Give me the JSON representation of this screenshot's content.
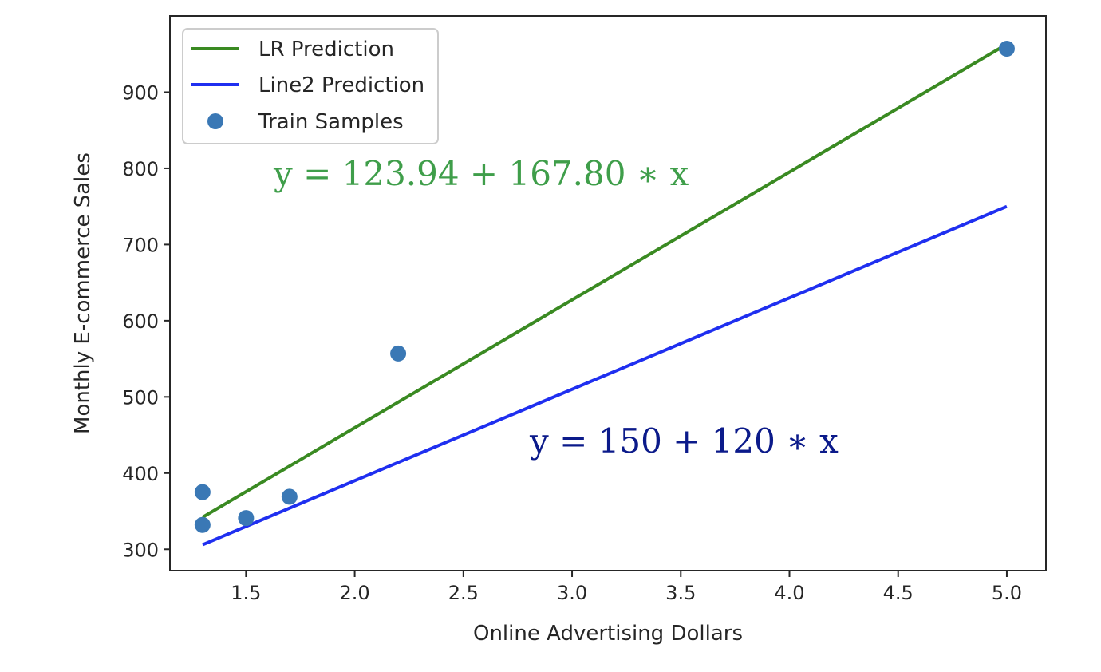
{
  "chart_data": {
    "type": "scatter",
    "xlabel": "Online Advertising Dollars",
    "ylabel": "Monthly E-commerce Sales",
    "xlim": [
      1.15,
      5.18
    ],
    "ylim": [
      272,
      1000
    ],
    "x_ticks": [
      1.5,
      2.0,
      2.5,
      3.0,
      3.5,
      4.0,
      4.5,
      5.0
    ],
    "x_tick_labels": [
      "1.5",
      "2.0",
      "2.5",
      "3.0",
      "3.5",
      "4.0",
      "4.5",
      "5.0"
    ],
    "y_ticks": [
      300,
      400,
      500,
      600,
      700,
      800,
      900
    ],
    "y_tick_labels": [
      "300",
      "400",
      "500",
      "600",
      "700",
      "800",
      "900"
    ],
    "grid": false,
    "legend_placement": "upper-left",
    "series": [
      {
        "name": "LR Prediction",
        "kind": "line",
        "color": "#3a8a22",
        "intercept": 123.94,
        "slope": 167.8,
        "x": [
          1.3,
          5.0
        ]
      },
      {
        "name": "Line2 Prediction",
        "kind": "line",
        "color": "#1f2ff0",
        "intercept": 150,
        "slope": 120,
        "x": [
          1.3,
          5.0
        ]
      },
      {
        "name": "Train Samples",
        "kind": "scatter",
        "color": "#3a78b5",
        "points": [
          {
            "x": 1.3,
            "y": 375
          },
          {
            "x": 1.3,
            "y": 332
          },
          {
            "x": 1.5,
            "y": 341
          },
          {
            "x": 1.7,
            "y": 369
          },
          {
            "x": 2.2,
            "y": 557
          },
          {
            "x": 5.0,
            "y": 957
          }
        ]
      }
    ],
    "annotations": [
      {
        "text": "y = 123.94 + 167.80  ∗ x",
        "color": "#3f9e4a"
      },
      {
        "text": "y = 150 + 120  ∗ x",
        "color": "#0b1a8a"
      }
    ]
  }
}
